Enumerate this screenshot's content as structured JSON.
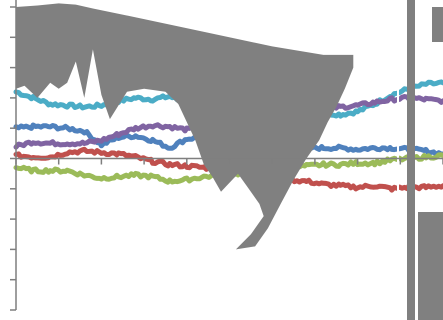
{
  "chart_data": {
    "type": "line",
    "title": "",
    "xlabel": "",
    "ylabel": "",
    "x_range": [
      0,
      100
    ],
    "y_range": [
      -5,
      5
    ],
    "y_ticks": [
      -5,
      -4,
      -3,
      -2,
      -1,
      0,
      1,
      2,
      3,
      4,
      5
    ],
    "grid": false,
    "legend": "none",
    "x_ticks": [
      0,
      10,
      20,
      30,
      40,
      50,
      60,
      70,
      80,
      90,
      100
    ],
    "zero_line": true,
    "colors": {
      "axis": "#7f7f7f",
      "overlay": "#808080",
      "cyan": "#4bacc6",
      "blue": "#4f81bd",
      "purple": "#8064a2",
      "red": "#c0504d",
      "green": "#9bbb59"
    },
    "overlay_shape": {
      "fill": "#808080",
      "points": [
        [
          0,
          5.0
        ],
        [
          5,
          5.05
        ],
        [
          10,
          5.12
        ],
        [
          14,
          5.08
        ],
        [
          18,
          4.95
        ],
        [
          30,
          4.6
        ],
        [
          45,
          4.15
        ],
        [
          60,
          3.7
        ],
        [
          72,
          3.42
        ],
        [
          79,
          3.42
        ],
        [
          79,
          3.0
        ],
        [
          77,
          2.3
        ],
        [
          75,
          1.7
        ],
        [
          73,
          1.2
        ],
        [
          71,
          0.6
        ],
        [
          68,
          0.0
        ],
        [
          65,
          -0.7
        ],
        [
          62,
          -1.5
        ],
        [
          59,
          -2.3
        ],
        [
          56,
          -2.9
        ],
        [
          51.5,
          -3.0
        ],
        [
          55,
          -2.5
        ],
        [
          58,
          -1.9
        ],
        [
          57,
          -1.5
        ],
        [
          54,
          -0.9
        ],
        [
          52,
          -0.5
        ],
        [
          50,
          -0.8
        ],
        [
          48,
          -1.1
        ],
        [
          46,
          -0.6
        ],
        [
          44,
          -0.2
        ],
        [
          42,
          0.6
        ],
        [
          40,
          1.2
        ],
        [
          38,
          1.8
        ],
        [
          35,
          2.2
        ],
        [
          30,
          2.3
        ],
        [
          26,
          2.2
        ],
        [
          22,
          1.3
        ],
        [
          20,
          2.1
        ],
        [
          18,
          3.6
        ],
        [
          16,
          2.0
        ],
        [
          14,
          3.2
        ],
        [
          12,
          2.5
        ],
        [
          10,
          2.3
        ],
        [
          8,
          2.5
        ],
        [
          5,
          2.0
        ],
        [
          2,
          2.4
        ],
        [
          0,
          2.3
        ]
      ]
    },
    "series": [
      {
        "color": "#4bacc6",
        "x": [
          0,
          4,
          8,
          12,
          16,
          20,
          24,
          28,
          32,
          36,
          40,
          44,
          48,
          52,
          56,
          60,
          64,
          68,
          72,
          76,
          80,
          84,
          88,
          92,
          96,
          100
        ],
        "values": [
          2.2,
          2.0,
          1.8,
          1.75,
          1.7,
          1.75,
          1.9,
          2.0,
          1.95,
          2.05,
          1.8,
          1.8,
          1.9,
          1.95,
          2.05,
          1.95,
          1.8,
          1.6,
          1.5,
          1.45,
          1.55,
          1.8,
          2.1,
          2.3,
          2.45,
          2.5
        ]
      },
      {
        "color": "#4f81bd",
        "x": [
          0,
          4,
          8,
          12,
          16,
          20,
          24,
          28,
          32,
          36,
          40,
          44,
          48,
          52,
          56,
          60,
          64,
          68,
          72,
          76,
          80,
          84,
          88,
          92,
          96,
          100
        ],
        "values": [
          1.0,
          1.05,
          1.05,
          1.0,
          0.9,
          0.45,
          0.7,
          0.75,
          0.6,
          0.35,
          0.65,
          0.7,
          0.75,
          0.8,
          0.8,
          0.6,
          0.45,
          0.35,
          0.35,
          0.35,
          0.3,
          0.35,
          0.35,
          0.3,
          0.25,
          0.15
        ]
      },
      {
        "color": "#8064a2",
        "x": [
          0,
          4,
          8,
          12,
          16,
          20,
          24,
          28,
          32,
          36,
          40,
          44,
          48,
          52,
          56,
          60,
          64,
          68,
          72,
          76,
          80,
          84,
          88,
          92,
          96,
          100
        ],
        "values": [
          0.4,
          0.55,
          0.5,
          0.5,
          0.5,
          0.6,
          0.8,
          1.0,
          1.1,
          1.05,
          0.95,
          1.0,
          1.1,
          1.2,
          1.3,
          1.35,
          1.45,
          1.55,
          1.65,
          1.7,
          1.75,
          1.85,
          1.95,
          2.0,
          1.95,
          1.9
        ]
      },
      {
        "color": "#c0504d",
        "x": [
          0,
          4,
          8,
          12,
          16,
          20,
          24,
          28,
          32,
          36,
          40,
          44,
          48,
          52,
          56,
          60,
          64,
          68,
          72,
          76,
          80,
          84,
          88,
          92,
          96,
          100
        ],
        "values": [
          0.1,
          0.05,
          0.05,
          0.2,
          0.25,
          0.2,
          0.15,
          0.05,
          -0.1,
          -0.2,
          -0.25,
          -0.3,
          -0.35,
          -0.4,
          -0.5,
          -0.65,
          -0.7,
          -0.75,
          -0.85,
          -0.9,
          -0.95,
          -0.9,
          -1.0,
          -0.95,
          -0.95,
          -0.9
        ]
      },
      {
        "color": "#9bbb59",
        "x": [
          0,
          4,
          8,
          12,
          16,
          20,
          24,
          28,
          32,
          36,
          40,
          44,
          48,
          52,
          56,
          60,
          64,
          68,
          72,
          76,
          80,
          84,
          88,
          92,
          96,
          100
        ],
        "values": [
          -0.3,
          -0.4,
          -0.4,
          -0.4,
          -0.55,
          -0.65,
          -0.6,
          -0.55,
          -0.6,
          -0.75,
          -0.7,
          -0.6,
          -0.55,
          -0.5,
          -0.45,
          -0.4,
          -0.3,
          -0.25,
          -0.2,
          -0.2,
          -0.15,
          -0.15,
          -0.05,
          0.0,
          0.05,
          0.1
        ]
      }
    ]
  }
}
